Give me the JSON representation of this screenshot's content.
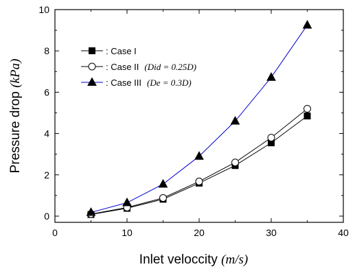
{
  "chart_data": {
    "type": "line",
    "xlabel": {
      "text": "Inlet veloccity ",
      "unit": "(m/s)"
    },
    "ylabel": {
      "text": "Pressure drop ",
      "unit": "(kPa)"
    },
    "xlim": [
      0,
      40
    ],
    "ylim": [
      -0.3,
      10
    ],
    "x_ticks": [
      0,
      10,
      20,
      30,
      40
    ],
    "y_ticks": [
      0,
      2,
      4,
      6,
      8,
      10
    ],
    "grid": false,
    "legend_placement": "top-left",
    "x": [
      5,
      10,
      15,
      20,
      25,
      30,
      35
    ],
    "series": [
      {
        "name": ": Case I",
        "note": "",
        "marker": "square",
        "filled": true,
        "color": "#000000",
        "values": [
          0.08,
          0.38,
          0.82,
          1.6,
          2.45,
          3.55,
          4.85
        ]
      },
      {
        "name": ": Case II",
        "note": "(Did = 0.25D)",
        "marker": "circle",
        "filled": false,
        "color": "#000000",
        "values": [
          0.1,
          0.42,
          0.88,
          1.68,
          2.6,
          3.8,
          5.2
        ]
      },
      {
        "name": ": Case III",
        "note": "(De = 0.3D)",
        "marker": "triangle",
        "filled": true,
        "color": "#0000cc",
        "values": [
          0.18,
          0.65,
          1.55,
          2.9,
          4.6,
          6.72,
          9.25
        ]
      }
    ]
  }
}
